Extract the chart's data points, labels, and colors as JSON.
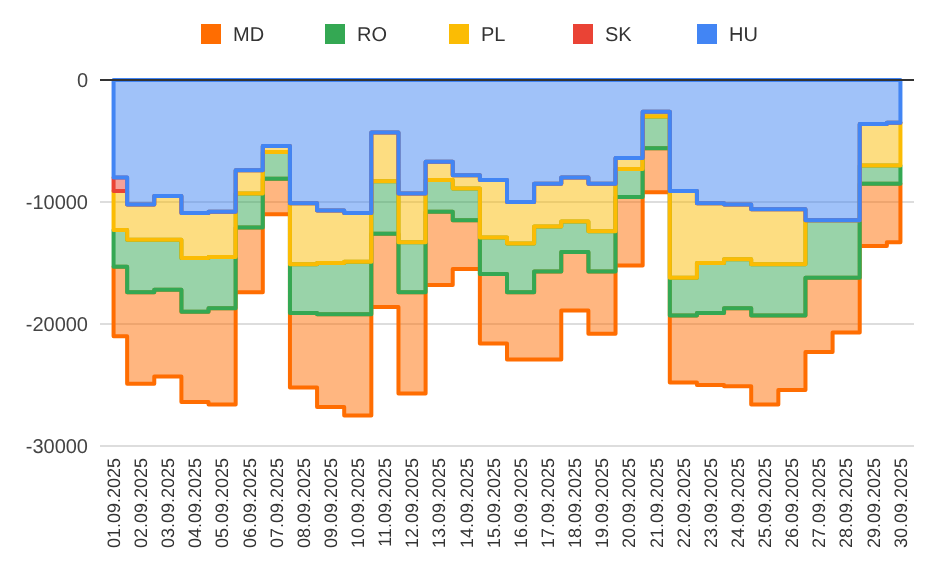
{
  "chart_data": {
    "type": "area",
    "stacked": true,
    "legend": "top",
    "grid": "y",
    "categories": [
      "01.09.2025",
      "02.09.2025",
      "03.09.2025",
      "04.09.2025",
      "05.09.2025",
      "06.09.2025",
      "07.09.2025",
      "08.09.2025",
      "09.09.2025",
      "10.09.2025",
      "11.09.2025",
      "12.09.2025",
      "13.09.2025",
      "14.09.2025",
      "15.09.2025",
      "16.09.2025",
      "17.09.2025",
      "18.09.2025",
      "19.09.2025",
      "20.09.2025",
      "21.09.2025",
      "22.09.2025",
      "23.09.2025",
      "24.09.2025",
      "25.09.2025",
      "26.09.2025",
      "27.09.2025",
      "28.09.2025",
      "29.09.2025",
      "30.09.2025"
    ],
    "ylim": [
      -30000,
      0
    ],
    "yticks": [
      -30000,
      -20000,
      -10000,
      0
    ],
    "series": [
      {
        "name": "HU",
        "color": "#4285f4",
        "values": [
          -8000,
          -10200,
          -9500,
          -10900,
          -10800,
          -7400,
          -5400,
          -10100,
          -10700,
          -10900,
          -4300,
          -9300,
          -6700,
          -7800,
          -8200,
          -10000,
          -8500,
          -8000,
          -8500,
          -6400,
          -2600,
          -9100,
          -10100,
          -10200,
          -10600,
          -10600,
          -11500,
          -11500,
          -3600,
          -3500
        ]
      },
      {
        "name": "SK",
        "color": "#ea4335",
        "values": [
          -1100,
          0,
          0,
          0,
          0,
          0,
          0,
          0,
          0,
          0,
          0,
          0,
          0,
          0,
          0,
          0,
          0,
          0,
          0,
          0,
          0,
          0,
          0,
          0,
          0,
          0,
          0,
          0,
          0,
          0
        ]
      },
      {
        "name": "PL",
        "color": "#fbbc04",
        "values": [
          -3200,
          -2900,
          -3600,
          -3700,
          -3700,
          -1900,
          -500,
          -5000,
          -4300,
          -4000,
          -4000,
          -4000,
          -1500,
          -1100,
          -4700,
          -3400,
          -3500,
          -3600,
          -3900,
          -900,
          -400,
          -7100,
          -4900,
          -4500,
          -4500,
          -4500,
          0,
          0,
          -3400,
          -3500
        ]
      },
      {
        "name": "RO",
        "color": "#34a853",
        "values": [
          -3000,
          -4300,
          -4100,
          -4400,
          -4200,
          -2800,
          -2200,
          -4000,
          -4200,
          -4300,
          -4300,
          -4100,
          -2600,
          -2600,
          -3000,
          -4000,
          -3700,
          -2500,
          -3300,
          -2300,
          -2600,
          -3100,
          -4100,
          -4000,
          -4200,
          -4200,
          -4700,
          -4700,
          -1500,
          -1500
        ]
      },
      {
        "name": "MD",
        "color": "#ff6d01",
        "values": [
          -5700,
          -7500,
          -7100,
          -7400,
          -7900,
          -5300,
          -2900,
          -6100,
          -7600,
          -8300,
          -6000,
          -8300,
          -6000,
          -4000,
          -5700,
          -5500,
          -7200,
          -4800,
          -5100,
          -5600,
          -3600,
          -5500,
          -5900,
          -6400,
          -7300,
          -6100,
          -6100,
          -4500,
          -5100,
          -4800
        ]
      }
    ]
  }
}
